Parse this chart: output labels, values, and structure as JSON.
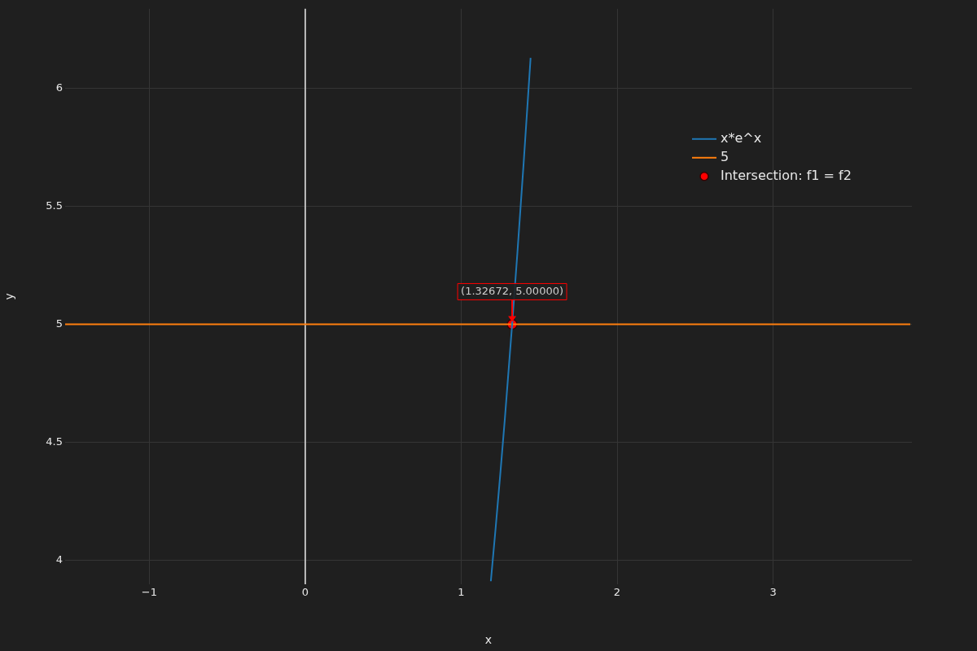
{
  "chart_data": {
    "type": "line",
    "xlabel": "x",
    "ylabel": "y",
    "xlim": [
      -1.54,
      3.89
    ],
    "ylim": [
      3.897,
      6.338
    ],
    "xticks": [
      {
        "value": -1,
        "label": "−1"
      },
      0,
      1,
      2,
      3
    ],
    "yticks": [
      4,
      4.5,
      5,
      5.5,
      6
    ],
    "grid": true,
    "legend": "top right",
    "line_style": "solid",
    "ref_lines": [
      {
        "axis": "x",
        "value": 0,
        "color": "#bbbbbb"
      }
    ],
    "annotations": [
      {
        "text": "(1.32672, 5.00000)",
        "x": 1.32672,
        "y": 5
      }
    ],
    "series": [
      {
        "name": "x*e^x",
        "color": "#1f77b4",
        "x": [
          1.19,
          1.22,
          1.25,
          1.28,
          1.3267,
          1.36,
          1.4,
          1.445
        ],
        "values": [
          3.91,
          4.13,
          4.36,
          4.6,
          5,
          5.3,
          5.68,
          6.13
        ],
        "marker": "none"
      },
      {
        "name": "5",
        "color": "#ff7f0e",
        "x": [
          -1.54,
          3.88
        ],
        "values": [
          5,
          5
        ],
        "marker": "none"
      },
      {
        "name": "Intersection: f1 = f2",
        "type": "scatter",
        "color": "#ff0000",
        "x": [
          1.32672
        ],
        "values": [
          5
        ],
        "marker": "circle"
      }
    ]
  }
}
